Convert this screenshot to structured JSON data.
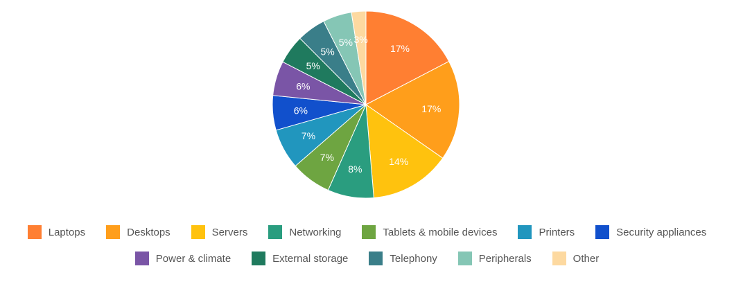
{
  "chart_data": {
    "type": "pie",
    "title": "",
    "legend_position": "bottom",
    "start_angle": "top",
    "direction": "clockwise",
    "categories": [
      "Laptops",
      "Desktops",
      "Servers",
      "Networking",
      "Tablets & mobile devices",
      "Printers",
      "Security appliances",
      "Power & climate",
      "External storage",
      "Telephony",
      "Peripherals",
      "Other"
    ],
    "values": [
      17.4,
      17.4,
      14.0,
      8.0,
      7.0,
      7.0,
      6.0,
      6.0,
      5.0,
      5.0,
      5.0,
      2.5
    ],
    "labels": [
      "17%",
      "17%",
      "14%",
      "8%",
      "7%",
      "7%",
      "6%",
      "6%",
      "5%",
      "5%",
      "5%",
      "3%"
    ],
    "colors": [
      "#FF7F32",
      "#FF9E1B",
      "#FFC20E",
      "#2A9D7F",
      "#6EA541",
      "#2196BE",
      "#1150CC",
      "#7A55A6",
      "#1F7A5E",
      "#3A7E89",
      "#85C6B5",
      "#FDD9A0"
    ],
    "legend_rows": [
      [
        0,
        1,
        2,
        3,
        4,
        5,
        6
      ],
      [
        7,
        8,
        9,
        10,
        11
      ]
    ]
  }
}
